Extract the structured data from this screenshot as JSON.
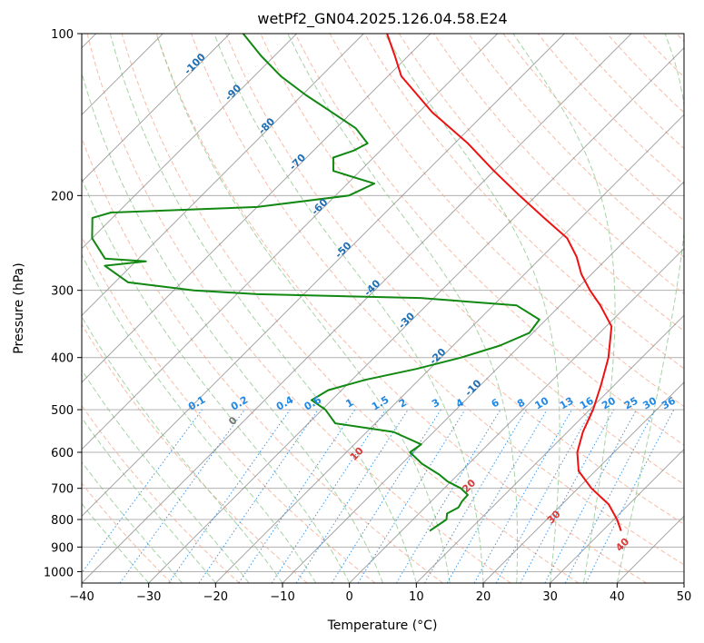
{
  "chart_data": {
    "type": "line",
    "title": "wetPf2_GN04.2025.126.04.58.E24",
    "xlabel": "Temperature (°C)",
    "ylabel": "Pressure (hPa)",
    "xlim": [
      -40,
      50
    ],
    "ylim": [
      1050,
      100
    ],
    "yscale": "log",
    "skew": true,
    "x_ticks": [
      -40,
      -30,
      -20,
      -10,
      0,
      10,
      20,
      30,
      40,
      50
    ],
    "x_tick_labels": [
      "−40",
      "−30",
      "−20",
      "−10",
      "0",
      "10",
      "20",
      "30",
      "40",
      "50"
    ],
    "y_ticks": [
      100,
      200,
      300,
      400,
      500,
      600,
      700,
      800,
      900,
      1000
    ],
    "y_tick_labels": [
      "100",
      "200",
      "300",
      "400",
      "500",
      "600",
      "700",
      "800",
      "900",
      "1000"
    ],
    "grid": true,
    "series": [
      {
        "color": "#ee1111",
        "points": [
          [
            840,
            32.8
          ],
          [
            800,
            30.5
          ],
          [
            750,
            27.0
          ],
          [
            700,
            22.0
          ],
          [
            650,
            17.5
          ],
          [
            600,
            14.5
          ],
          [
            550,
            12.3
          ],
          [
            500,
            10.5
          ],
          [
            450,
            8.0
          ],
          [
            400,
            5.0
          ],
          [
            350,
            0.8
          ],
          [
            320,
            -4.0
          ],
          [
            300,
            -7.8
          ],
          [
            280,
            -11.5
          ],
          [
            260,
            -14.8
          ],
          [
            240,
            -19.0
          ],
          [
            220,
            -25.5
          ],
          [
            200,
            -32.5
          ],
          [
            180,
            -40.0
          ],
          [
            160,
            -48.0
          ],
          [
            140,
            -58.0
          ],
          [
            120,
            -68.0
          ],
          [
            110,
            -72.0
          ],
          [
            100,
            -76.5
          ]
        ]
      },
      {
        "color": "#118811",
        "points": [
          [
            840,
            4.2
          ],
          [
            800,
            5.0
          ],
          [
            780,
            4.2
          ],
          [
            760,
            5.0
          ],
          [
            740,
            4.6
          ],
          [
            720,
            4.5
          ],
          [
            700,
            2.5
          ],
          [
            680,
            -0.5
          ],
          [
            660,
            -2.8
          ],
          [
            630,
            -7.0
          ],
          [
            600,
            -10.5
          ],
          [
            580,
            -10.0
          ],
          [
            550,
            -16.0
          ],
          [
            530,
            -26.0
          ],
          [
            500,
            -29.5
          ],
          [
            480,
            -33.0
          ],
          [
            460,
            -32.0
          ],
          [
            440,
            -28.0
          ],
          [
            420,
            -22.0
          ],
          [
            400,
            -17.0
          ],
          [
            380,
            -13.0
          ],
          [
            360,
            -10.5
          ],
          [
            340,
            -11.0
          ],
          [
            320,
            -16.5
          ],
          [
            310,
            -32.0
          ],
          [
            305,
            -57.0
          ],
          [
            300,
            -67.0
          ],
          [
            290,
            -78.0
          ],
          [
            270,
            -84.0
          ],
          [
            265,
            -78.5
          ],
          [
            262,
            -85.0
          ],
          [
            240,
            -90.0
          ],
          [
            220,
            -93.0
          ],
          [
            215,
            -91.0
          ],
          [
            210,
            -70.0
          ],
          [
            200,
            -58.0
          ],
          [
            190,
            -56.0
          ],
          [
            180,
            -64.0
          ],
          [
            170,
            -66.0
          ],
          [
            165,
            -64.0
          ],
          [
            160,
            -63.0
          ],
          [
            150,
            -67.0
          ],
          [
            140,
            -73.0
          ],
          [
            130,
            -79.5
          ],
          [
            120,
            -86.0
          ],
          [
            110,
            -92.0
          ],
          [
            100,
            -98.0
          ]
        ]
      }
    ],
    "isotherm_labels": [
      "-100",
      "-90",
      "-80",
      "-70",
      "-60",
      "-50",
      "-40",
      "-30",
      "-20",
      "-10"
    ],
    "isotherm_label_values": [
      -100,
      -90,
      -80,
      -70,
      -60,
      -50,
      -40,
      -30,
      -20,
      -10
    ],
    "mixing_ratio_labels": [
      "0.1",
      "0.2",
      "0.4",
      "0.6",
      "1",
      "1.5",
      "2",
      "3",
      "4",
      "6",
      "8",
      "10",
      "13",
      "16",
      "20",
      "25",
      "30",
      "36"
    ],
    "mixing_ratio_values": [
      0.1,
      0.2,
      0.4,
      0.6,
      1,
      1.5,
      2,
      3,
      4,
      6,
      8,
      10,
      13,
      16,
      20,
      25,
      30,
      36
    ],
    "moist_adiabat_labels": [
      "0",
      "10",
      "20",
      "30",
      "40"
    ],
    "moist_adiabat_values": [
      0,
      10,
      20,
      30,
      40
    ],
    "moist_adiabat_label_pressures": [
      530,
      610,
      700,
      800,
      900
    ],
    "colors": {
      "temperature": "#ee1111",
      "dewpoint": "#118811",
      "isotherm": "#888888",
      "isotherm_label": "#1f6fb4",
      "dry_adiabat": "#f4a58a",
      "moist_adiabat": "#88c488",
      "mixing_ratio": "#1f88e5",
      "moist_label_zero": "#777777",
      "moist_label": "#d93a3a",
      "tan_adiabat": "#d9b98e"
    }
  }
}
